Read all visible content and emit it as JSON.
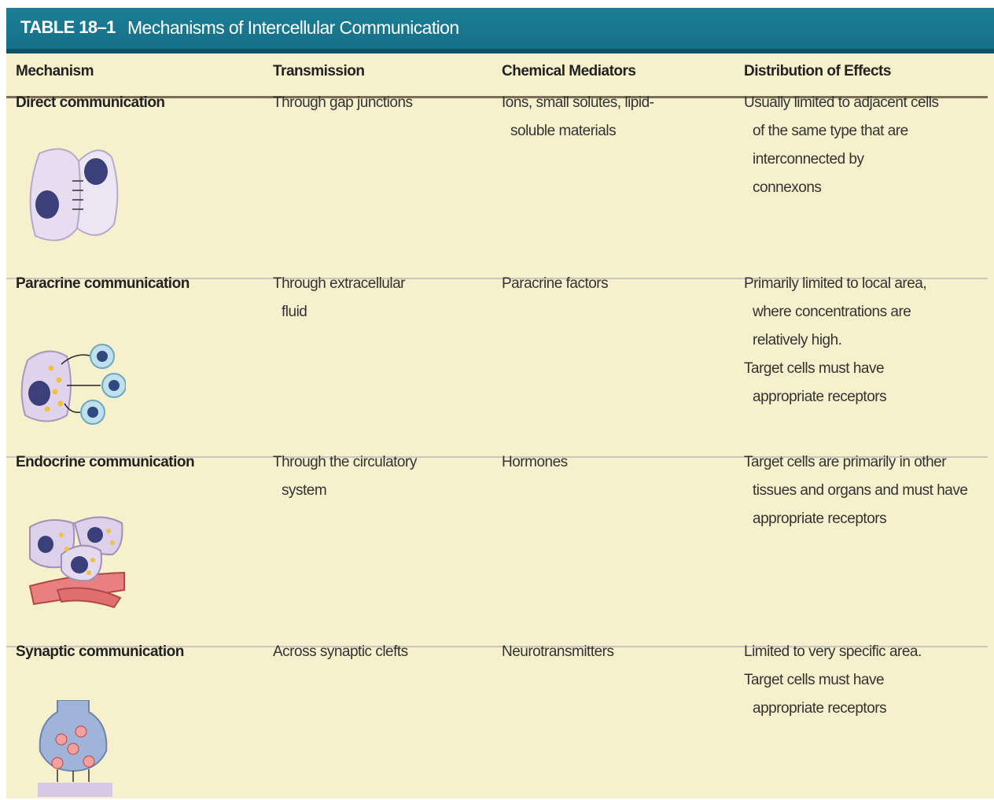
{
  "header": {
    "label": "TABLE 18–1",
    "title": "Mechanisms of Intercellular Communication"
  },
  "table": {
    "columns": [
      "Mechanism",
      "Transmission",
      "Chemical Mediators",
      "Distribution of Effects"
    ],
    "rows": [
      [
        [
          [
            "Direct communication"
          ]
        ],
        [
          [
            "Through gap junctions"
          ]
        ],
        [
          [
            "Ions, small solutes, lipid-",
            "soluble materials"
          ]
        ],
        [
          [
            "Usually limited to adjacent cells",
            "of the same type that are",
            "interconnected by",
            "connexons"
          ]
        ]
      ],
      [
        [
          [
            "Paracrine communication"
          ]
        ],
        [
          [
            "Through extracellular",
            "fluid"
          ]
        ],
        [
          [
            "Paracrine factors"
          ]
        ],
        [
          [
            "Primarily limited to local area,",
            "where concentrations are",
            "relatively high."
          ],
          [
            "Target cells must have",
            "appropriate receptors"
          ]
        ]
      ],
      [
        [
          [
            "Endocrine communication"
          ]
        ],
        [
          [
            "Through the circulatory",
            "system"
          ]
        ],
        [
          [
            "Hormones"
          ]
        ],
        [
          [
            "Target cells are primarily in other",
            "tissues and organs and must have",
            "appropriate receptors"
          ]
        ]
      ],
      [
        [
          [
            "Synaptic communication"
          ]
        ],
        [
          [
            "Across synaptic clefts"
          ]
        ],
        [
          [
            "Neurotransmitters"
          ]
        ],
        [
          [
            "Limited to very specific area."
          ],
          [
            "Target cells must have",
            "appropriate receptors"
          ]
        ]
      ]
    ]
  }
}
